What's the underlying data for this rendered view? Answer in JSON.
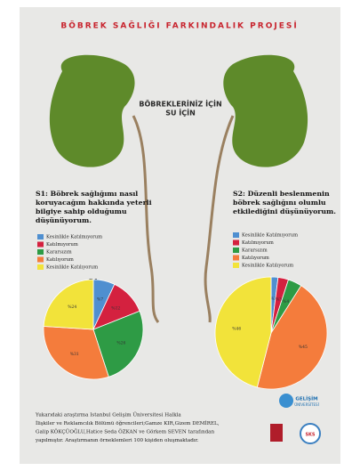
{
  "poster": {
    "title": "BÖBREK SAĞLIĞI FARKINDALIK PROJESİ",
    "slogan": [
      "BÖBREKLERİNİZ İÇİN",
      "SU İÇİN"
    ],
    "footer": [
      "Yukarıdaki araştırma Istanbul Gelişim Üniversitesi Halkla",
      "İlişkiler ve Reklamcılık Bölümü öğrencileri;Gamze KIR,Gizem DEMİREL,",
      "Galip KÖKÇÜOĞLU,Hatice Seda ÖZKAN ve Görkem SEVEN tarafından",
      "yapılmıştır. Araştırmanın örneklemleri 100 kişiden oluşmaktadır."
    ],
    "logos": [
      "GELİŞİM",
      "ÜNİVERSİTESİ",
      "SKS"
    ]
  },
  "chart_data": [
    {
      "type": "pie",
      "title": "S1",
      "question": [
        "S1: Böbrek sağlığımı nasıl",
        "koruyacağım hakkında yeterli",
        "bilgiye sahip olduğumu",
        "düşünüyorum."
      ],
      "categories": [
        "Kesinlikle Katılmıyorum",
        "Katılmıyorum",
        "Kararsızım",
        "Katılıyorum",
        "Kesinlikle Katılıyorum"
      ],
      "values": [
        7,
        12,
        26,
        31,
        24
      ],
      "value_labels": [
        "%7",
        "%12",
        "%26",
        "%31",
        "%24"
      ],
      "colors": [
        "#4f8fd0",
        "#d4213f",
        "#2e9b45",
        "#f47c3c",
        "#f2e33a"
      ]
    },
    {
      "type": "pie",
      "title": "S2",
      "question": [
        "S2: Düzenli beslenmenin",
        "böbrek sağlığını olumlu",
        "etkilediğini düşünüyorum."
      ],
      "categories": [
        "Kesinlikle Katılmıyorum",
        "Katılmıyorum",
        "Kararsızım",
        "Katılıyorum",
        "Kesinlikle Katılıyorum"
      ],
      "values": [
        2,
        3,
        4,
        45,
        46
      ],
      "value_labels": [
        "%2",
        "%3",
        "%4",
        "%45",
        "%46"
      ],
      "colors": [
        "#4f8fd0",
        "#d4213f",
        "#2e9b45",
        "#f47c3c",
        "#f2e33a"
      ]
    }
  ]
}
